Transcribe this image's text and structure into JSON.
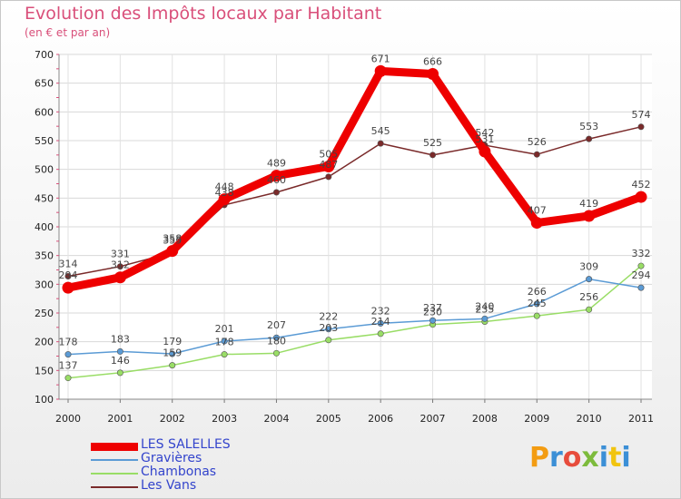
{
  "title": "Evolution des Impôts locaux par Habitant",
  "subtitle": "(en € et par an)",
  "logo_text": "Proxiti",
  "chart_data": {
    "type": "line",
    "title": "Evolution des Impôts locaux par Habitant",
    "subtitle": "(en € et par an)",
    "xlabel": "",
    "ylabel": "",
    "x": [
      "2000",
      "2001",
      "2002",
      "2003",
      "2004",
      "2005",
      "2006",
      "2007",
      "2008",
      "2009",
      "2010",
      "2011"
    ],
    "ylim": [
      100,
      700
    ],
    "yticks": [
      100,
      150,
      200,
      250,
      300,
      350,
      400,
      450,
      500,
      550,
      600,
      650,
      700
    ],
    "grid": true,
    "legend_position": "bottom-left",
    "series": [
      {
        "name": "LES SALELLES",
        "color": "#ee0000",
        "values": [
          294,
          312,
          358,
          448,
          489,
          505,
          671,
          666,
          531,
          407,
          419,
          452
        ]
      },
      {
        "name": "Gravières",
        "color": "#5b9bd5",
        "values": [
          178,
          183,
          179,
          201,
          207,
          222,
          232,
          237,
          240,
          266,
          309,
          294
        ]
      },
      {
        "name": "Chambonas",
        "color": "#99dd66",
        "values": [
          137,
          146,
          159,
          178,
          180,
          203,
          214,
          230,
          235,
          245,
          256,
          332
        ]
      },
      {
        "name": "Les Vans",
        "color": "#7a2a2a",
        "values": [
          314,
          331,
          355,
          438,
          460,
          487,
          545,
          525,
          542,
          526,
          553,
          574
        ]
      }
    ]
  }
}
